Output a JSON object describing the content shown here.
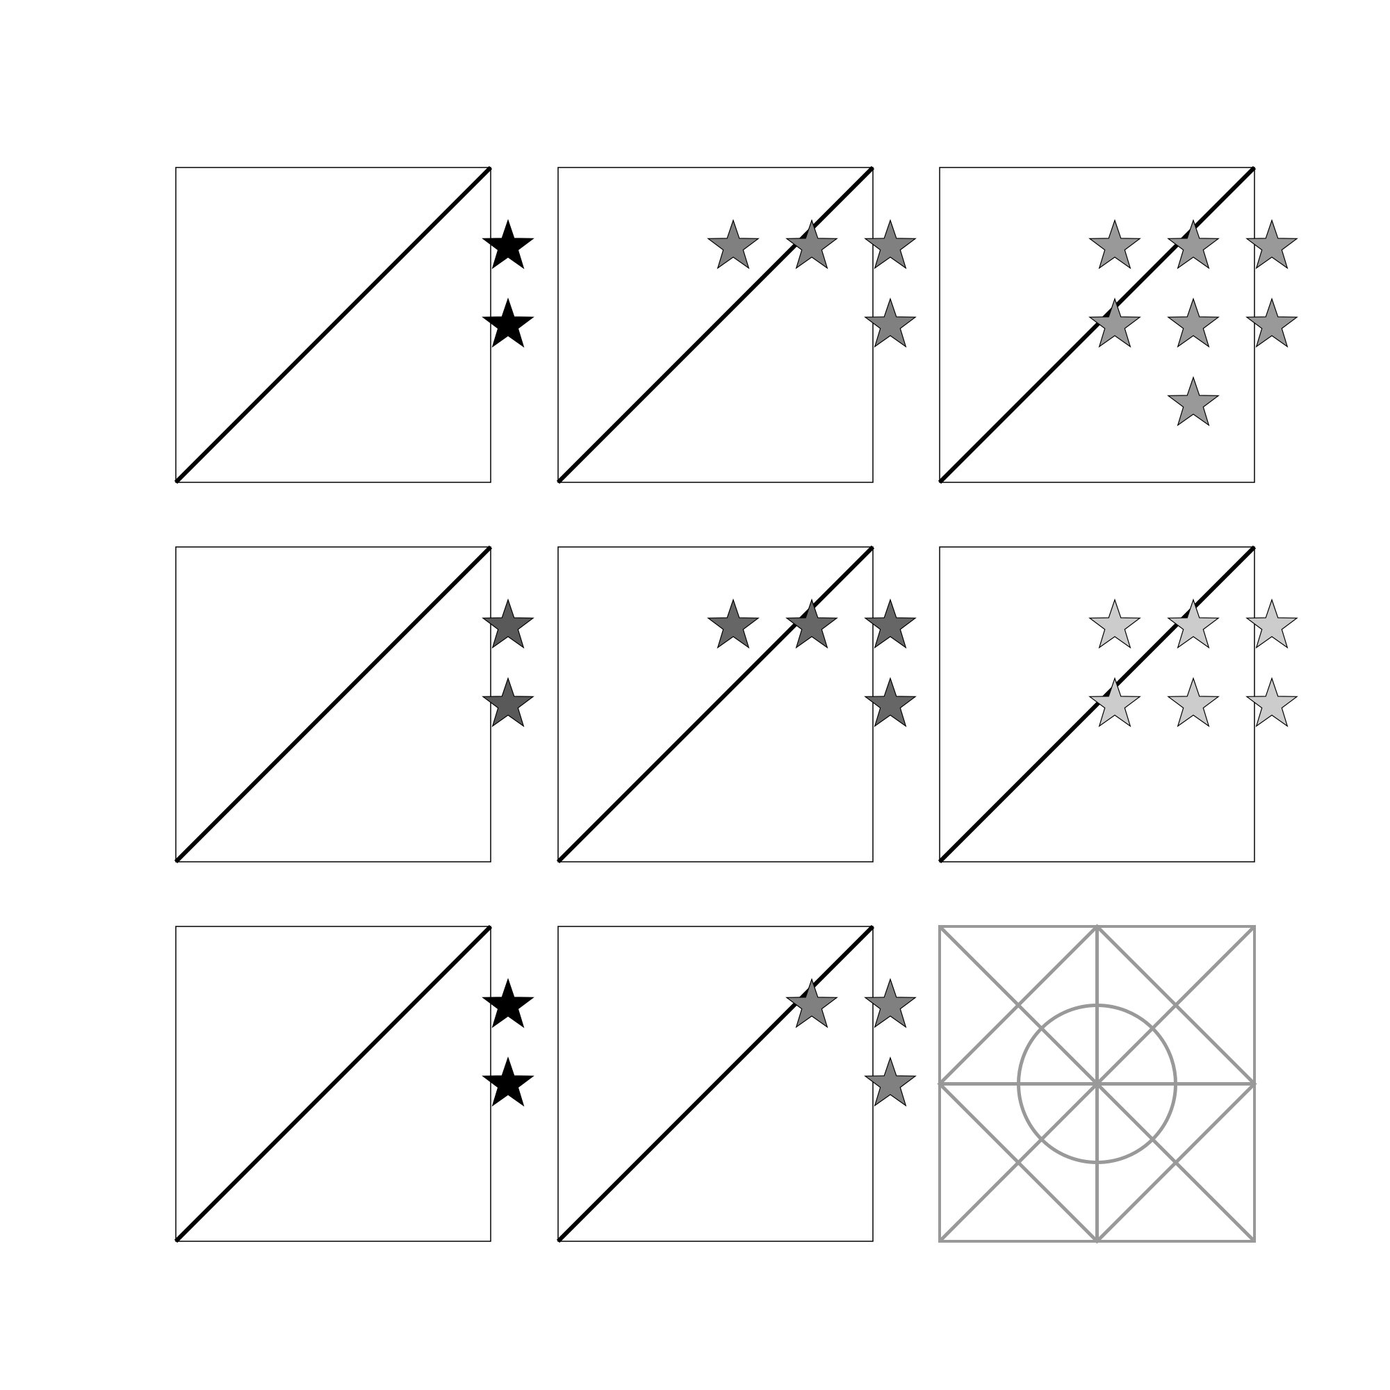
{
  "panels": [
    {
      "id": "r1c1",
      "fill": "#000000",
      "stars": [
        [
          3,
          0
        ],
        [
          3,
          1
        ]
      ],
      "diagonal": true
    },
    {
      "id": "r1c2",
      "fill": "#808080",
      "stars": [
        [
          1,
          0
        ],
        [
          2,
          0
        ],
        [
          3,
          0
        ],
        [
          3,
          1
        ]
      ],
      "diagonal": true
    },
    {
      "id": "r1c3",
      "fill": "#999999",
      "stars": [
        [
          1,
          0
        ],
        [
          2,
          0
        ],
        [
          3,
          0
        ],
        [
          1,
          1
        ],
        [
          2,
          1
        ],
        [
          3,
          1
        ],
        [
          2,
          2
        ]
      ],
      "diagonal": true
    },
    {
      "id": "r2c1",
      "fill": "#595959",
      "stars": [
        [
          3,
          0
        ],
        [
          3,
          1
        ]
      ],
      "diagonal": true
    },
    {
      "id": "r2c2",
      "fill": "#666666",
      "stars": [
        [
          1,
          0
        ],
        [
          2,
          0
        ],
        [
          3,
          0
        ],
        [
          3,
          1
        ]
      ],
      "diagonal": true
    },
    {
      "id": "r2c3",
      "fill": "#cccccc",
      "stars": [
        [
          1,
          0
        ],
        [
          2,
          0
        ],
        [
          3,
          0
        ],
        [
          1,
          1
        ],
        [
          2,
          1
        ],
        [
          3,
          1
        ]
      ],
      "diagonal": true
    },
    {
      "id": "r3c1",
      "fill": "#000000",
      "stars": [
        [
          3,
          0
        ],
        [
          3,
          1
        ]
      ],
      "diagonal": true
    },
    {
      "id": "r3c2",
      "fill": "#808080",
      "stars": [
        [
          2,
          0
        ],
        [
          3,
          0
        ],
        [
          3,
          1
        ]
      ],
      "diagonal": true
    },
    {
      "id": "r3c3",
      "fill": null,
      "stars": [],
      "diagonal": false,
      "placeholder": true
    }
  ],
  "colors": {
    "frame": "#000000",
    "diagonal": "#000000",
    "placeholder": "#999999"
  }
}
